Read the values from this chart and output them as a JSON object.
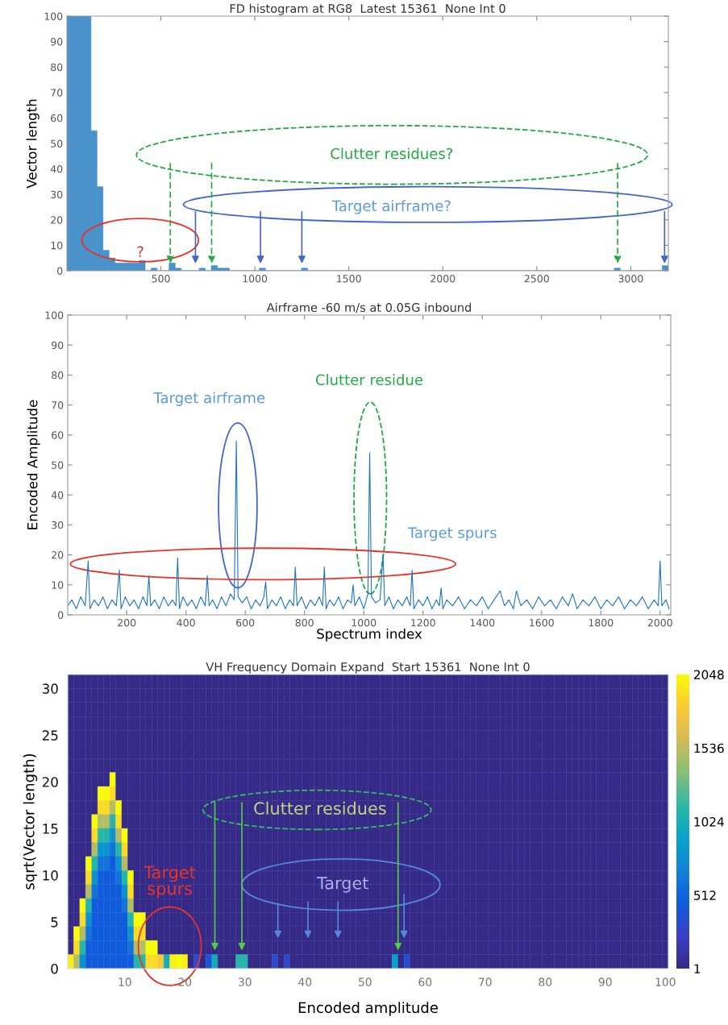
{
  "chart_data": [
    {
      "type": "histogram",
      "title": "FD histogram at RG8  Latest 15361  None Int 0",
      "ylabel": "Vector length",
      "color": "#4a92cc",
      "bins": [
        0,
        32,
        64,
        96,
        128,
        160,
        192,
        224,
        256,
        288,
        320,
        352,
        384,
        416,
        448,
        480,
        512,
        544,
        576,
        608,
        640,
        672,
        704,
        736,
        768,
        800,
        832,
        864,
        896,
        928,
        960,
        992,
        1024,
        1056,
        1088,
        1120,
        1152,
        1184,
        1216,
        1248,
        1280,
        1312,
        1344,
        1376,
        1408,
        1440,
        1472,
        1504,
        1536,
        1568,
        1600,
        1632,
        1664,
        1696,
        1728,
        1760,
        1792,
        1824,
        1856,
        1888,
        1920,
        1952,
        1984,
        2016,
        2048,
        2080,
        2112,
        2144,
        2176,
        2208,
        2240,
        2272,
        2304,
        2336,
        2368,
        2400,
        2432,
        2464,
        2496,
        2528,
        2560,
        2592,
        2624,
        2656,
        2688,
        2720,
        2752,
        2784,
        2816,
        2848,
        2880,
        2912,
        2944,
        2976,
        3008,
        3040,
        3072,
        3104,
        3136,
        3168,
        3200
      ],
      "values": [
        100,
        100,
        100,
        100,
        55,
        33,
        8,
        5,
        3,
        3,
        3,
        3,
        4,
        0,
        1,
        0,
        0,
        3,
        1,
        0,
        0,
        0,
        1,
        0,
        2,
        1,
        1,
        0,
        0,
        0,
        0,
        0,
        1,
        0,
        0,
        0,
        0,
        0,
        0,
        1,
        0,
        0,
        0,
        0,
        0,
        0,
        0,
        0,
        0,
        0,
        0,
        0,
        0,
        0,
        0,
        0,
        0,
        0,
        0,
        0,
        0,
        0,
        0,
        0,
        0,
        0,
        0,
        0,
        0,
        0,
        0,
        0,
        0,
        0,
        0,
        0,
        0,
        0,
        0,
        0,
        0,
        0,
        0,
        0,
        0,
        0,
        0,
        0,
        0,
        0,
        0,
        1,
        0,
        0,
        0,
        0,
        0,
        0,
        0,
        2
      ],
      "xlim": [
        0,
        3200
      ],
      "ylim": [
        0,
        100
      ],
      "xticks": [
        500,
        1000,
        1500,
        2000,
        2500,
        3000
      ],
      "yticks": [
        0,
        10,
        20,
        30,
        40,
        50,
        60,
        70,
        80,
        90,
        100
      ],
      "annotations": [
        "Clutter residues?",
        "Target airframe?",
        "?"
      ]
    },
    {
      "type": "line",
      "title": "Airframe -60 m/s at 0.05G inbound",
      "xlabel": "Spectrum index",
      "ylabel": "Encoded Amplitude",
      "color": "#1f76bf",
      "x": [
        1,
        15,
        30,
        45,
        60,
        70,
        76,
        90,
        105,
        120,
        135,
        150,
        165,
        175,
        181,
        195,
        210,
        225,
        240,
        255,
        268,
        275,
        281,
        295,
        310,
        325,
        340,
        355,
        366,
        372,
        378,
        390,
        405,
        420,
        435,
        450,
        465,
        472,
        478,
        490,
        505,
        520,
        535,
        550,
        563,
        570,
        576,
        590,
        605,
        620,
        635,
        650,
        663,
        669,
        675,
        690,
        705,
        720,
        735,
        750,
        763,
        769,
        775,
        790,
        805,
        820,
        835,
        850,
        861,
        867,
        873,
        885,
        900,
        915,
        930,
        945,
        958,
        964,
        970,
        985,
        1000,
        1014,
        1020,
        1026,
        1040,
        1055,
        1065,
        1071,
        1085,
        1100,
        1115,
        1130,
        1145,
        1157,
        1163,
        1169,
        1185,
        1200,
        1215,
        1230,
        1245,
        1255,
        1261,
        1267,
        1280,
        1300,
        1320,
        1340,
        1360,
        1380,
        1400,
        1420,
        1440,
        1460,
        1475,
        1490,
        1505,
        1515,
        1530,
        1550,
        1570,
        1590,
        1610,
        1630,
        1650,
        1670,
        1690,
        1705,
        1720,
        1740,
        1760,
        1780,
        1800,
        1820,
        1840,
        1860,
        1880,
        1900,
        1920,
        1940,
        1960,
        1980,
        1994,
        2000,
        2006,
        2020,
        2030
      ],
      "values": [
        3,
        5,
        2,
        6,
        3,
        18,
        2,
        5,
        3,
        6,
        2,
        5,
        3,
        15,
        2,
        6,
        3,
        5,
        2,
        6,
        3,
        13,
        3,
        5,
        2,
        6,
        3,
        5,
        3,
        19,
        2,
        6,
        3,
        5,
        2,
        6,
        3,
        13,
        3,
        5,
        2,
        6,
        3,
        7,
        5,
        58,
        6,
        4,
        6,
        2,
        5,
        3,
        6,
        11,
        2,
        5,
        3,
        6,
        2,
        5,
        3,
        16,
        3,
        6,
        2,
        5,
        3,
        6,
        3,
        16,
        2,
        5,
        3,
        6,
        2,
        5,
        4,
        10,
        3,
        6,
        2,
        7,
        54,
        6,
        4,
        5,
        20,
        3,
        6,
        2,
        5,
        3,
        6,
        3,
        15,
        2,
        5,
        3,
        6,
        2,
        5,
        3,
        9,
        2,
        5,
        3,
        6,
        2,
        5,
        3,
        6,
        2,
        5,
        8,
        3,
        5,
        2,
        8,
        3,
        5,
        2,
        6,
        3,
        5,
        2,
        6,
        3,
        7,
        2,
        5,
        3,
        6,
        2,
        5,
        3,
        6,
        2,
        5,
        3,
        6,
        2,
        5,
        3,
        18,
        3,
        5,
        2
      ],
      "xlim": [
        1,
        2036
      ],
      "ylim": [
        0,
        100
      ],
      "xticks": [
        200,
        400,
        600,
        800,
        1000,
        1200,
        1400,
        1600,
        1800,
        2000
      ],
      "yticks": [
        0,
        10,
        20,
        30,
        40,
        50,
        60,
        70,
        80,
        90,
        100
      ],
      "annotations": [
        "Target airframe",
        "Clutter residue",
        "Target spurs"
      ]
    },
    {
      "type": "heatmap",
      "title": "VH Frequency Domain Expand  Start 15361  None Int 0",
      "xlabel": "Encoded amplitude",
      "ylabel": "sqrt(Vector length)",
      "x": [
        1,
        2,
        3,
        4,
        5,
        6,
        7,
        8,
        9,
        10,
        11,
        12,
        13,
        14,
        15,
        16,
        17,
        18,
        19,
        20,
        21,
        22,
        23,
        24,
        25,
        26,
        27,
        28,
        29,
        30,
        31,
        32,
        33,
        34,
        35,
        36,
        37,
        38,
        39,
        40,
        41,
        42,
        43,
        44,
        45,
        46,
        47,
        48,
        49,
        50,
        51,
        52,
        53,
        54,
        55,
        56,
        57,
        58,
        59,
        60,
        61,
        62,
        63,
        64,
        65,
        66,
        67,
        68,
        69,
        70,
        71,
        72,
        73,
        74,
        75,
        76,
        77,
        78,
        79,
        80,
        81,
        82,
        83,
        84,
        85,
        86,
        87,
        88,
        89,
        90,
        91,
        92,
        93,
        94,
        95,
        96,
        97,
        98,
        99,
        100
      ],
      "y": [
        30.75,
        29.25,
        27.75,
        26.25,
        24.75,
        23.25,
        21.75,
        20.25,
        18.75,
        17.25,
        15.75,
        14.25,
        12.75,
        11.25,
        9.75,
        8.25,
        6.75,
        5.25,
        3.75,
        2.25,
        0.75
      ],
      "cells": [
        [
          1,
          1,
          1,
          1,
          1,
          1,
          1,
          1,
          1,
          1,
          1,
          1,
          1,
          1,
          1,
          1,
          1,
          1,
          1,
          1,
          1,
          1,
          1,
          1,
          1,
          1,
          1,
          1,
          1,
          1,
          1,
          1,
          1,
          1,
          1,
          1,
          1,
          1,
          1,
          1,
          1,
          1,
          1,
          1,
          1,
          1,
          1,
          1,
          1,
          1,
          1,
          1,
          1,
          1,
          1,
          1,
          1,
          1,
          1,
          1,
          1,
          1,
          1,
          1,
          1,
          1,
          1,
          1,
          1,
          1,
          1,
          1,
          1,
          1,
          1,
          1,
          1,
          1,
          1,
          1,
          1,
          1,
          1,
          1,
          1,
          1,
          1,
          1,
          1,
          1,
          1,
          1,
          1,
          1,
          1,
          1,
          1,
          1,
          1,
          1
        ],
        [
          1,
          1,
          1,
          1,
          1,
          1,
          1,
          1,
          1,
          1,
          1,
          1,
          1,
          1,
          1,
          1,
          1,
          1,
          1,
          1,
          1,
          1,
          1,
          1,
          1,
          1,
          1,
          1,
          1,
          1,
          1,
          1,
          1,
          1,
          1,
          1,
          1,
          1,
          1,
          1,
          1,
          1,
          1,
          1,
          1,
          1,
          1,
          1,
          1,
          1,
          1,
          1,
          1,
          1,
          1,
          1,
          1,
          1,
          1,
          1,
          1,
          1,
          1,
          1,
          1,
          1,
          1,
          1,
          1,
          1,
          1,
          1,
          1,
          1,
          1,
          1,
          1,
          1,
          1,
          1,
          1,
          1,
          1,
          1,
          1,
          1,
          1,
          1,
          1,
          1,
          1,
          1,
          1,
          1,
          1,
          1,
          1,
          1,
          1,
          1
        ],
        [
          1,
          1,
          1,
          1,
          1,
          1,
          1,
          1,
          1,
          1,
          1,
          1,
          1,
          1,
          1,
          1,
          1,
          1,
          1,
          1,
          1,
          1,
          1,
          1,
          1,
          1,
          1,
          1,
          1,
          1,
          1,
          1,
          1,
          1,
          1,
          1,
          1,
          1,
          1,
          1,
          1,
          1,
          1,
          1,
          1,
          1,
          1,
          1,
          1,
          1,
          1,
          1,
          1,
          1,
          1,
          1,
          1,
          1,
          1,
          1,
          1,
          1,
          1,
          1,
          1,
          1,
          1,
          1,
          1,
          1,
          1,
          1,
          1,
          1,
          1,
          1,
          1,
          1,
          1,
          1,
          1,
          1,
          1,
          1,
          1,
          1,
          1,
          1,
          1,
          1,
          1,
          1,
          1,
          1,
          1,
          1,
          1,
          1,
          1,
          1
        ],
        [
          1,
          1,
          1,
          1,
          1,
          1,
          1,
          1,
          1,
          1,
          1,
          1,
          1,
          1,
          1,
          1,
          1,
          1,
          1,
          1,
          1,
          1,
          1,
          1,
          1,
          1,
          1,
          1,
          1,
          1,
          1,
          1,
          1,
          1,
          1,
          1,
          1,
          1,
          1,
          1,
          1,
          1,
          1,
          1,
          1,
          1,
          1,
          1,
          1,
          1,
          1,
          1,
          1,
          1,
          1,
          1,
          1,
          1,
          1,
          1,
          1,
          1,
          1,
          1,
          1,
          1,
          1,
          1,
          1,
          1,
          1,
          1,
          1,
          1,
          1,
          1,
          1,
          1,
          1,
          1,
          1,
          1,
          1,
          1,
          1,
          1,
          1,
          1,
          1,
          1,
          1,
          1,
          1,
          1,
          1,
          1,
          1,
          1,
          1,
          1
        ],
        [
          1,
          1,
          1,
          1,
          1,
          1,
          1,
          1,
          1,
          1,
          1,
          1,
          1,
          1,
          1,
          1,
          1,
          1,
          1,
          1,
          1,
          1,
          1,
          1,
          1,
          1,
          1,
          1,
          1,
          1,
          1,
          1,
          1,
          1,
          1,
          1,
          1,
          1,
          1,
          1,
          1,
          1,
          1,
          1,
          1,
          1,
          1,
          1,
          1,
          1,
          1,
          1,
          1,
          1,
          1,
          1,
          1,
          1,
          1,
          1,
          1,
          1,
          1,
          1,
          1,
          1,
          1,
          1,
          1,
          1,
          1,
          1,
          1,
          1,
          1,
          1,
          1,
          1,
          1,
          1,
          1,
          1,
          1,
          1,
          1,
          1,
          1,
          1,
          1,
          1,
          1,
          1,
          1,
          1,
          1,
          1,
          1,
          1,
          1,
          1
        ],
        [
          1,
          1,
          1,
          1,
          1,
          1,
          1,
          1,
          1,
          1,
          1,
          1,
          1,
          1,
          1,
          1,
          1,
          1,
          1,
          1,
          1,
          1,
          1,
          1,
          1,
          1,
          1,
          1,
          1,
          1,
          1,
          1,
          1,
          1,
          1,
          1,
          1,
          1,
          1,
          1,
          1,
          1,
          1,
          1,
          1,
          1,
          1,
          1,
          1,
          1,
          1,
          1,
          1,
          1,
          1,
          1,
          1,
          1,
          1,
          1,
          1,
          1,
          1,
          1,
          1,
          1,
          1,
          1,
          1,
          1,
          1,
          1,
          1,
          1,
          1,
          1,
          1,
          1,
          1,
          1,
          1,
          1,
          1,
          1,
          1,
          1,
          1,
          1,
          1,
          1,
          1,
          1,
          1,
          1,
          1,
          1,
          1,
          1,
          1,
          1
        ],
        [
          1,
          1,
          1,
          1,
          1,
          1,
          1,
          1,
          1,
          1,
          1,
          1,
          1,
          1,
          1,
          1,
          1,
          1,
          1,
          1,
          1,
          1,
          1,
          1,
          1,
          1,
          1,
          1,
          1,
          1,
          1,
          1,
          1,
          1,
          1,
          1,
          1,
          1,
          1,
          1,
          1,
          1,
          1,
          1,
          1,
          1,
          1,
          1,
          1,
          1,
          1,
          1,
          1,
          1,
          1,
          1,
          1,
          1,
          1,
          1,
          1,
          1,
          1,
          1,
          1,
          1,
          1,
          1,
          1,
          1,
          1,
          1,
          1,
          1,
          1,
          1,
          1,
          1,
          1,
          1,
          1,
          1,
          1,
          1,
          1,
          1,
          1,
          1,
          1,
          1,
          1,
          1,
          1,
          1,
          1,
          1,
          1,
          1,
          1,
          1
        ],
        [
          1,
          1,
          1,
          1,
          1,
          1,
          1,
          2048,
          1,
          1,
          1,
          1,
          1,
          1,
          1,
          1,
          1,
          1,
          1,
          1,
          1,
          1,
          1,
          1,
          1,
          1,
          1,
          1,
          1,
          1,
          1,
          1,
          1,
          1,
          1,
          1,
          1,
          1,
          1,
          1,
          1,
          1,
          1,
          1,
          1,
          1,
          1,
          1,
          1,
          1,
          1,
          1,
          1,
          1,
          1,
          1,
          1,
          1,
          1,
          1,
          1,
          1,
          1,
          1,
          1,
          1,
          1,
          1,
          1,
          1,
          1,
          1,
          1,
          1,
          1,
          1,
          1,
          1,
          1,
          1,
          1,
          1,
          1,
          1,
          1,
          1,
          1,
          1,
          1,
          1,
          1,
          1,
          1,
          1,
          1,
          1,
          1,
          1,
          1,
          1
        ],
        [
          1,
          1,
          1,
          1,
          1,
          2048,
          2048,
          1900,
          1,
          1,
          1,
          1,
          1,
          1,
          1,
          1,
          1,
          1,
          1,
          1,
          1,
          1,
          1,
          1,
          1,
          1,
          1,
          1,
          1,
          1,
          1,
          1,
          1,
          1,
          1,
          1,
          1,
          1,
          1,
          1,
          1,
          1,
          1,
          1,
          1,
          1,
          1,
          1,
          1,
          1,
          1,
          1,
          1,
          1,
          1,
          1,
          1,
          1,
          1,
          1,
          1,
          1,
          1,
          1,
          1,
          1,
          1,
          1,
          1,
          1,
          1,
          1,
          1,
          1,
          1,
          1,
          1,
          1,
          1,
          1,
          1,
          1,
          1,
          1,
          1,
          1,
          1,
          1,
          1,
          1,
          1,
          1,
          1,
          1,
          1,
          1,
          1,
          1,
          1,
          1
        ],
        [
          1,
          1,
          1,
          1,
          1,
          1900,
          1900,
          1500,
          2048,
          1,
          1,
          1,
          1,
          1,
          1,
          1,
          1,
          1,
          1,
          1,
          1,
          1,
          1,
          1,
          1,
          1,
          1,
          1,
          1,
          1,
          1,
          1,
          1,
          1,
          1,
          1,
          1,
          1,
          1,
          1,
          1,
          1,
          1,
          1,
          1,
          1,
          1,
          1,
          1,
          1,
          1,
          1,
          1,
          1,
          1,
          1,
          1,
          1,
          1,
          1,
          1,
          1,
          1,
          1,
          1,
          1,
          1,
          1,
          1,
          1,
          1,
          1,
          1,
          1,
          1,
          1,
          1,
          1,
          1,
          1,
          1,
          1,
          1,
          1,
          1,
          1,
          1,
          1,
          1,
          1,
          1,
          1,
          1,
          1,
          1,
          1,
          1,
          1,
          1,
          1
        ],
        [
          1,
          1,
          1,
          1,
          2048,
          1500,
          1500,
          1100,
          1900,
          1,
          1,
          1,
          1,
          1,
          1,
          1,
          1,
          1,
          1,
          1,
          1,
          1,
          1,
          1,
          1,
          1,
          1,
          1,
          1,
          1,
          1,
          1,
          1,
          1,
          1,
          1,
          1,
          1,
          1,
          1,
          1,
          1,
          1,
          1,
          1,
          1,
          1,
          1,
          1,
          1,
          1,
          1,
          1,
          1,
          1,
          1,
          1,
          1,
          1,
          1,
          1,
          1,
          1,
          1,
          1,
          1,
          1,
          1,
          1,
          1,
          1,
          1,
          1,
          1,
          1,
          1,
          1,
          1,
          1,
          1,
          1,
          1,
          1,
          1,
          1,
          1,
          1,
          1,
          1,
          1,
          1,
          1,
          1,
          1,
          1,
          1,
          1,
          1,
          1,
          1
        ],
        [
          1,
          1,
          1,
          1,
          1900,
          1100,
          1100,
          800,
          1500,
          2048,
          1,
          1,
          1,
          1,
          1,
          1,
          1,
          1,
          1,
          1,
          1,
          1,
          1,
          1,
          1,
          1,
          1,
          1,
          1,
          1,
          1,
          1,
          1,
          1,
          1,
          1,
          1,
          1,
          1,
          1,
          1,
          1,
          1,
          1,
          1,
          1,
          1,
          1,
          1,
          1,
          1,
          1,
          1,
          1,
          1,
          1,
          1,
          1,
          1,
          1,
          1,
          1,
          1,
          1,
          1,
          1,
          1,
          1,
          1,
          1,
          1,
          1,
          1,
          1,
          1,
          1,
          1,
          1,
          1,
          1,
          1,
          1,
          1,
          1,
          1,
          1,
          1,
          1,
          1,
          1,
          1,
          1,
          1,
          1,
          1,
          1,
          1,
          1,
          1,
          1
        ],
        [
          1,
          1,
          1,
          1,
          1500,
          800,
          800,
          600,
          1100,
          1900,
          1,
          1,
          1,
          1,
          1,
          1,
          1,
          1,
          1,
          1,
          1,
          1,
          1,
          1,
          1,
          1,
          1,
          1,
          1,
          1,
          1,
          1,
          1,
          1,
          1,
          1,
          1,
          1,
          1,
          1,
          1,
          1,
          1,
          1,
          1,
          1,
          1,
          1,
          1,
          1,
          1,
          1,
          1,
          1,
          1,
          1,
          1,
          1,
          1,
          1,
          1,
          1,
          1,
          1,
          1,
          1,
          1,
          1,
          1,
          1,
          1,
          1,
          1,
          1,
          1,
          1,
          1,
          1,
          1,
          1,
          1,
          1,
          1,
          1,
          1,
          1,
          1,
          1,
          1,
          1,
          1,
          1,
          1,
          1,
          1,
          1,
          1,
          1,
          1,
          1
        ],
        [
          1,
          1,
          1,
          2048,
          1100,
          600,
          600,
          450,
          800,
          1500,
          1,
          1,
          1,
          1,
          1,
          1,
          1,
          1,
          1,
          1,
          1,
          1,
          1,
          1,
          1,
          1,
          1,
          1,
          1,
          1,
          1,
          1,
          1,
          1,
          1,
          1,
          1,
          1,
          1,
          1,
          1,
          1,
          1,
          1,
          1,
          1,
          1,
          1,
          1,
          1,
          1,
          1,
          1,
          1,
          1,
          1,
          1,
          1,
          1,
          1,
          1,
          1,
          1,
          1,
          1,
          1,
          1,
          1,
          1,
          1,
          1,
          1,
          1,
          1,
          1,
          1,
          1,
          1,
          1,
          1,
          1,
          1,
          1,
          1,
          1,
          1,
          1,
          1,
          1,
          1,
          1,
          1,
          1,
          1,
          1,
          1,
          1,
          1,
          1,
          1
        ],
        [
          1,
          1,
          1,
          1900,
          800,
          450,
          450,
          450,
          600,
          1100,
          2048,
          1,
          1,
          1,
          1,
          1,
          1,
          1,
          1,
          1,
          1,
          1,
          1,
          1,
          1,
          1,
          1,
          1,
          1,
          1,
          1,
          1,
          1,
          1,
          1,
          1,
          1,
          1,
          1,
          1,
          1,
          1,
          1,
          1,
          1,
          1,
          1,
          1,
          1,
          1,
          1,
          1,
          1,
          1,
          1,
          1,
          1,
          1,
          1,
          1,
          1,
          1,
          1,
          1,
          1,
          1,
          1,
          1,
          1,
          1,
          1,
          1,
          1,
          1,
          1,
          1,
          1,
          1,
          1,
          1,
          1,
          1,
          1,
          1,
          1,
          1,
          1,
          1,
          1,
          1,
          1,
          1,
          1,
          1,
          1,
          1,
          1,
          1,
          1,
          1
        ],
        [
          1,
          1,
          1,
          1500,
          600,
          450,
          450,
          450,
          450,
          800,
          1900,
          1,
          1,
          1,
          1,
          1,
          1,
          1,
          1,
          1,
          1,
          1,
          1,
          1,
          1,
          1,
          1,
          1,
          1,
          1,
          1,
          1,
          1,
          1,
          1,
          1,
          1,
          1,
          1,
          1,
          1,
          1,
          1,
          1,
          1,
          1,
          1,
          1,
          1,
          1,
          1,
          1,
          1,
          1,
          1,
          1,
          1,
          1,
          1,
          1,
          1,
          1,
          1,
          1,
          1,
          1,
          1,
          1,
          1,
          1,
          1,
          1,
          1,
          1,
          1,
          1,
          1,
          1,
          1,
          1,
          1,
          1,
          1,
          1,
          1,
          1,
          1,
          1,
          1,
          1,
          1,
          1,
          1,
          1,
          1,
          1,
          1,
          1,
          1,
          1
        ],
        [
          1,
          1,
          2048,
          1100,
          450,
          450,
          450,
          450,
          450,
          600,
          1500,
          1,
          1,
          1,
          1,
          1,
          1,
          1,
          1,
          1,
          1,
          1,
          1,
          1,
          1,
          1,
          1,
          1,
          1,
          1,
          1,
          1,
          1,
          1,
          1,
          1,
          1,
          1,
          1,
          1,
          1,
          1,
          1,
          1,
          1,
          1,
          1,
          1,
          1,
          1,
          1,
          1,
          1,
          1,
          1,
          1,
          1,
          1,
          1,
          1,
          1,
          1,
          1,
          1,
          1,
          1,
          1,
          1,
          1,
          1,
          1,
          1,
          1,
          1,
          1,
          1,
          1,
          1,
          1,
          1,
          1,
          1,
          1,
          1,
          1,
          1,
          1,
          1,
          1,
          1,
          1,
          1,
          1,
          1,
          1,
          1,
          1,
          1,
          1,
          1
        ],
        [
          1,
          1,
          1900,
          800,
          450,
          450,
          450,
          450,
          450,
          450,
          1100,
          2048,
          2048,
          1,
          1,
          1,
          1,
          1,
          1,
          1,
          1,
          1,
          1,
          1,
          1,
          1,
          1,
          1,
          1,
          1,
          1,
          1,
          1,
          1,
          1,
          1,
          1,
          1,
          1,
          1,
          1,
          1,
          1,
          1,
          1,
          1,
          1,
          1,
          1,
          1,
          1,
          1,
          1,
          1,
          1,
          1,
          1,
          1,
          1,
          1,
          1,
          1,
          1,
          1,
          1,
          1,
          1,
          1,
          1,
          1,
          1,
          1,
          1,
          1,
          1,
          1,
          1,
          1,
          1,
          1,
          1,
          1,
          1,
          1,
          1,
          1,
          1,
          1,
          1,
          1,
          1,
          1,
          1,
          1,
          1,
          1,
          1,
          1,
          1,
          1
        ],
        [
          1,
          2048,
          1500,
          600,
          450,
          450,
          450,
          450,
          450,
          450,
          800,
          1900,
          1900,
          1,
          1,
          1,
          1,
          1,
          1,
          1,
          1,
          1,
          1,
          1,
          1,
          1,
          1,
          1,
          1,
          1,
          1,
          1,
          1,
          1,
          1,
          1,
          1,
          1,
          1,
          1,
          1,
          1,
          1,
          1,
          1,
          1,
          1,
          1,
          1,
          1,
          1,
          1,
          1,
          1,
          1,
          1,
          1,
          1,
          1,
          1,
          1,
          1,
          1,
          1,
          1,
          1,
          1,
          1,
          1,
          1,
          1,
          1,
          1,
          1,
          1,
          1,
          1,
          1,
          1,
          1,
          1,
          1,
          1,
          1,
          1,
          1,
          1,
          1,
          1,
          1,
          1,
          1,
          1,
          1,
          1,
          1,
          1,
          1,
          1,
          1
        ],
        [
          1,
          1900,
          1100,
          450,
          450,
          450,
          450,
          450,
          450,
          450,
          600,
          1500,
          1500,
          2048,
          2048,
          1,
          1,
          1,
          1,
          1,
          1,
          1,
          1,
          1,
          1,
          1,
          1,
          1,
          1,
          1,
          1,
          1,
          1,
          1,
          1,
          1,
          1,
          1,
          1,
          1,
          1,
          1,
          1,
          1,
          1,
          1,
          1,
          1,
          1,
          1,
          1,
          1,
          1,
          1,
          1,
          1,
          1,
          1,
          1,
          1,
          1,
          1,
          1,
          1,
          1,
          1,
          1,
          1,
          1,
          1,
          1,
          1,
          1,
          1,
          1,
          1,
          1,
          1,
          1,
          1,
          1,
          1,
          1,
          1,
          1,
          1,
          1,
          1,
          1,
          1,
          1,
          1,
          1,
          1,
          1,
          1,
          1,
          1,
          1,
          1
        ],
        [
          2000,
          1500,
          800,
          450,
          450,
          450,
          450,
          450,
          450,
          450,
          450,
          1100,
          1100,
          1900,
          1900,
          1800,
          1000,
          2000,
          2048,
          2000,
          1,
          300,
          1,
          400,
          1000,
          1,
          1,
          1,
          1100,
          1100,
          1,
          1,
          1,
          1,
          300,
          1,
          300,
          1,
          1,
          1,
          1,
          1,
          1,
          1,
          1,
          1,
          1,
          1,
          1,
          1,
          1,
          1,
          1,
          1,
          900,
          1,
          350,
          1,
          1,
          1,
          1,
          1,
          1,
          1,
          1,
          1,
          1,
          1,
          1,
          1,
          1,
          1,
          1,
          1,
          1,
          1,
          1,
          1,
          1,
          1,
          1,
          1,
          1,
          1,
          1,
          1,
          1,
          1,
          1,
          1,
          1,
          1,
          1,
          1,
          1,
          1,
          1,
          1,
          1,
          1
        ]
      ],
      "xlim": [
        0.5,
        100.5
      ],
      "ylim": [
        0,
        31.5
      ],
      "xticks": [
        10,
        20,
        30,
        40,
        50,
        60,
        70,
        80,
        90,
        100
      ],
      "yticks": [
        0,
        5,
        10,
        15,
        20,
        25,
        30
      ],
      "clim": [
        1,
        2048
      ],
      "cticks": [
        1,
        512,
        1024,
        1536,
        2048
      ],
      "annotations": [
        "Clutter residues",
        "Target",
        "Target\nspurs"
      ]
    }
  ]
}
